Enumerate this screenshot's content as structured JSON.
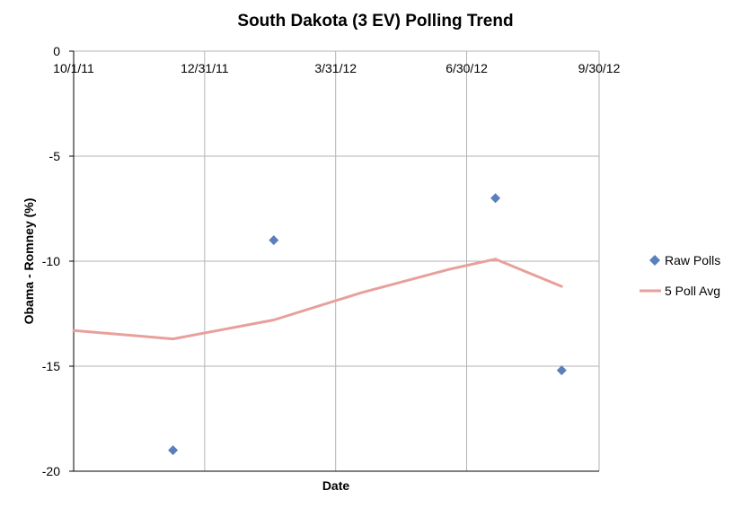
{
  "chart_data": {
    "type": "scatter",
    "title": "South Dakota (3 EV) Polling Trend",
    "xlabel": "Date",
    "ylabel": "Obama - Romney (%)",
    "x_ticks": [
      "10/1/11",
      "12/31/11",
      "3/31/12",
      "6/30/12",
      "9/30/12"
    ],
    "x_tick_days": [
      0,
      91,
      182,
      273,
      365
    ],
    "xlim_days": [
      0,
      365
    ],
    "y_ticks": [
      "0",
      "-5",
      "-10",
      "-15",
      "-20"
    ],
    "y_tick_values": [
      0,
      -5,
      -10,
      -15,
      -20
    ],
    "ylim": [
      -20,
      0
    ],
    "grid": true,
    "legend_position": "right",
    "colors": {
      "raw": "#5b7fbd",
      "avg": "#e8a09c"
    },
    "series": [
      {
        "name": "Raw Polls",
        "kind": "marker",
        "x": [
          69,
          139,
          293,
          339
        ],
        "y": [
          -19.0,
          -9.0,
          -7.0,
          -15.2
        ]
      },
      {
        "name": "5 Poll Avg",
        "kind": "line",
        "x": [
          0,
          69,
          139,
          200,
          260,
          293,
          339
        ],
        "y": [
          -13.3,
          -13.7,
          -12.8,
          -11.5,
          -10.4,
          -9.9,
          -11.2
        ]
      }
    ]
  }
}
